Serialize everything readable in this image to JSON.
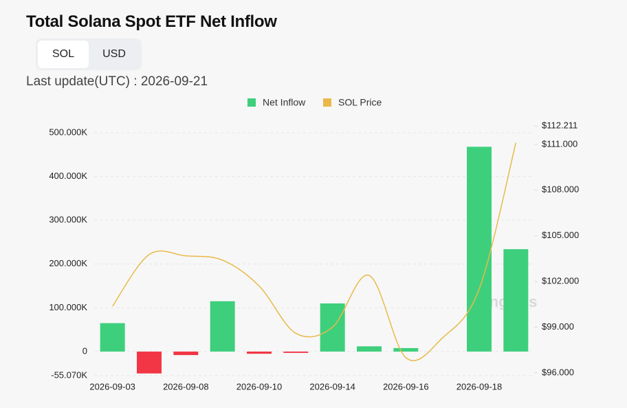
{
  "chart_data": {
    "type": "bar",
    "title": "Total Solana Spot ETF Net Inflow",
    "controls": {
      "options": [
        "SOL",
        "USD"
      ],
      "selected": 0
    },
    "last_update": "Last update(UTC) : 2026-09-21",
    "watermark": "coinglass",
    "categories": [
      "2026-09-03",
      null,
      "2026-09-08",
      null,
      "2026-09-10",
      null,
      "2026-09-14",
      null,
      "2026-09-16",
      null,
      "2026-09-18",
      null
    ],
    "series": [
      {
        "name": "Net Inflow",
        "type": "bar",
        "color": "#3ecf7d",
        "negative_color": "#f23645",
        "values": [
          65000,
          -50000,
          -8000,
          115000,
          -5000,
          -3000,
          110000,
          12000,
          8000,
          0,
          468000,
          234000
        ]
      },
      {
        "name": "SOL Price",
        "type": "line",
        "axis": "y2",
        "color": "#e9b949",
        "values": [
          100.38,
          103.77,
          103.68,
          103.4,
          101.7,
          98.6,
          99.0,
          102.4,
          97.0,
          98.3,
          101.5,
          111.1
        ]
      }
    ],
    "ylim": [
      -55070,
      515700
    ],
    "yticks": [
      {
        "value": -55070,
        "label": "-55.070K"
      },
      0,
      {
        "value": 100000,
        "label": "100.000K"
      },
      {
        "value": 200000,
        "label": "200.000K"
      },
      {
        "value": 300000,
        "label": "300.000K"
      },
      {
        "value": 400000,
        "label": "400.000K"
      },
      {
        "value": 500000,
        "label": "500.000K"
      }
    ],
    "y2lim": [
      96,
      112.211
    ],
    "y2ticks": [
      {
        "value": 96,
        "label": "$96.000"
      },
      {
        "value": 99,
        "label": "$99.000"
      },
      {
        "value": 102,
        "label": "$102.000"
      },
      {
        "value": 105,
        "label": "$105.000"
      },
      {
        "value": 108,
        "label": "$108.000"
      },
      {
        "value": 111,
        "label": "$111.000"
      },
      {
        "value": 112.211,
        "label": "$112.211"
      }
    ],
    "grid": true
  }
}
